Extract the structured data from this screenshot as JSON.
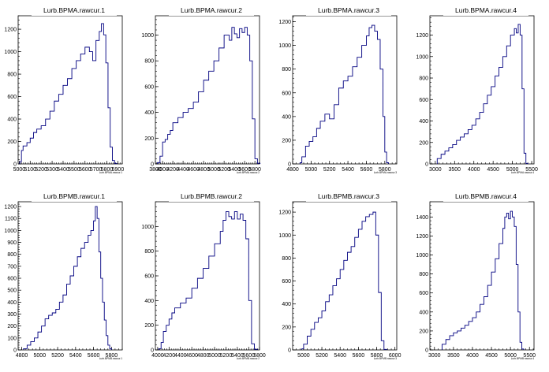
{
  "chart_data": [
    {
      "type": "histogram",
      "title": "Lurb.BPMA.rawcur.1",
      "xlabel": "Lurb.BPMA.rawcur.1",
      "xlim": [
        4990,
        5940
      ],
      "ylim": [
        0,
        1320
      ],
      "xticks": [
        5000,
        5100,
        5200,
        5300,
        5400,
        5500,
        5600,
        5700,
        5800,
        5900
      ],
      "xticklabels": [
        "5000",
        "5100",
        "5200",
        "5300",
        "5400",
        "5500",
        "5600",
        "5700",
        "5800",
        "5900"
      ],
      "yticks": [
        0,
        200,
        400,
        600,
        800,
        1000,
        1200
      ],
      "x": [
        5005,
        5020,
        5035,
        5050,
        5070,
        5100,
        5130,
        5160,
        5200,
        5240,
        5280,
        5320,
        5360,
        5400,
        5440,
        5480,
        5520,
        5560,
        5600,
        5640,
        5670,
        5700,
        5730,
        5750,
        5770,
        5790,
        5810,
        5830,
        5850,
        5870
      ],
      "values": [
        20,
        120,
        160,
        160,
        190,
        230,
        280,
        310,
        340,
        400,
        470,
        560,
        620,
        700,
        760,
        850,
        920,
        980,
        1040,
        1000,
        920,
        1100,
        1180,
        1250,
        1150,
        900,
        500,
        150,
        30,
        5
      ]
    },
    {
      "type": "histogram",
      "title": "Lurb.BPMA.rawcur.2",
      "xlabel": "Lurb.BPMA.rawcur.2",
      "xlim": [
        3860,
        5890
      ],
      "ylim": [
        0,
        1150
      ],
      "xticks": [
        3800,
        4000,
        4200,
        4400,
        4600,
        4800,
        5000,
        5200,
        5400,
        5600,
        5800
      ],
      "xticklabels": [
        "3800",
        "4000",
        "4200",
        "4400",
        "4600",
        "4800",
        "5000",
        "5200",
        "5400",
        "5600",
        "5800"
      ],
      "yticks": [
        0,
        200,
        400,
        600,
        800,
        1000
      ],
      "x": [
        3900,
        3950,
        4000,
        4050,
        4100,
        4150,
        4200,
        4300,
        4400,
        4500,
        4600,
        4700,
        4800,
        4900,
        5000,
        5100,
        5200,
        5300,
        5350,
        5400,
        5450,
        5500,
        5550,
        5600,
        5650,
        5700,
        5750,
        5800,
        5850
      ],
      "values": [
        10,
        60,
        170,
        190,
        230,
        260,
        320,
        360,
        400,
        430,
        480,
        560,
        650,
        720,
        800,
        900,
        1000,
        960,
        1060,
        1010,
        980,
        1050,
        1020,
        1060,
        1000,
        800,
        350,
        40,
        5
      ]
    },
    {
      "type": "histogram",
      "title": "Lurb.BPMA.rawcur.3",
      "xlabel": "Lurb.BPMA.rawcur.3",
      "xlim": [
        4800,
        5930
      ],
      "ylim": [
        0,
        1250
      ],
      "xticks": [
        4800,
        5000,
        5200,
        5400,
        5600,
        5800
      ],
      "xticklabels": [
        "4800",
        "5000",
        "5200",
        "5400",
        "5600",
        "5800"
      ],
      "yticks": [
        0,
        200,
        400,
        600,
        800,
        1000,
        1200
      ],
      "x": [
        4880,
        4900,
        4940,
        4980,
        5020,
        5060,
        5100,
        5150,
        5200,
        5250,
        5300,
        5350,
        5400,
        5450,
        5500,
        5550,
        5600,
        5630,
        5660,
        5690,
        5720,
        5750,
        5780,
        5800,
        5820
      ],
      "values": [
        10,
        60,
        150,
        190,
        230,
        300,
        360,
        420,
        380,
        500,
        640,
        700,
        740,
        820,
        900,
        1000,
        1080,
        1150,
        1170,
        1120,
        1050,
        800,
        400,
        100,
        10
      ]
    },
    {
      "type": "histogram",
      "title": "Lurb.BPMA.rawcur.4",
      "xlabel": "Lurb.BPMA.rawcur.4",
      "xlim": [
        2860,
        5560
      ],
      "ylim": [
        0,
        1380
      ],
      "xticks": [
        3000,
        3500,
        4000,
        4500,
        5000,
        5500
      ],
      "xticklabels": [
        "3000",
        "3500",
        "4000",
        "4500",
        "5000",
        "5500"
      ],
      "yticks": [
        0,
        200,
        400,
        600,
        800,
        1000,
        1200
      ],
      "x": [
        3050,
        3150,
        3250,
        3350,
        3450,
        3550,
        3650,
        3750,
        3850,
        3950,
        4050,
        4150,
        4250,
        4350,
        4450,
        4550,
        4650,
        4750,
        4850,
        4950,
        5050,
        5100,
        5150,
        5200,
        5250,
        5300,
        5350
      ],
      "values": [
        50,
        90,
        120,
        150,
        180,
        220,
        250,
        280,
        320,
        360,
        420,
        480,
        560,
        640,
        720,
        820,
        900,
        1000,
        1100,
        1200,
        1260,
        1220,
        1300,
        1200,
        700,
        100,
        5
      ]
    },
    {
      "type": "histogram",
      "title": "Lurb.BPMB.rawcur.1",
      "xlabel": "Lurb.BPMB.rawcur.1",
      "xlim": [
        4760,
        5920
      ],
      "ylim": [
        0,
        1240
      ],
      "xticks": [
        4800,
        5000,
        5200,
        5400,
        5600,
        5800
      ],
      "xticklabels": [
        "4800",
        "5000",
        "5200",
        "5400",
        "5600",
        "5800"
      ],
      "yticks": [
        0,
        100,
        200,
        300,
        400,
        500,
        600,
        700,
        800,
        900,
        1000,
        1100,
        1200
      ],
      "x": [
        4820,
        4860,
        4900,
        4940,
        4980,
        5020,
        5060,
        5100,
        5140,
        5180,
        5220,
        5260,
        5300,
        5340,
        5380,
        5420,
        5460,
        5500,
        5540,
        5570,
        5600,
        5620,
        5640,
        5660,
        5680,
        5700,
        5720,
        5740,
        5760,
        5780
      ],
      "values": [
        10,
        40,
        70,
        100,
        150,
        200,
        260,
        290,
        310,
        340,
        400,
        460,
        550,
        620,
        700,
        780,
        850,
        900,
        960,
        1000,
        1080,
        1200,
        1100,
        820,
        600,
        400,
        250,
        120,
        40,
        10
      ]
    },
    {
      "type": "histogram",
      "title": "Lurb.BPMB.rawcur.2",
      "xlabel": "Lurb.BPMB.rawcur.2",
      "xlim": [
        3960,
        5790
      ],
      "ylim": [
        0,
        1200
      ],
      "xticks": [
        4000,
        4200,
        4400,
        4600,
        4800,
        5000,
        5200,
        5400,
        5600,
        5800
      ],
      "xticklabels": [
        "4000",
        "4200",
        "4400",
        "4600",
        "4800",
        "5000",
        "5200",
        "5400",
        "5600",
        "5800"
      ],
      "yticks": [
        0,
        200,
        400,
        600,
        800,
        1000
      ],
      "x": [
        4020,
        4060,
        4100,
        4150,
        4200,
        4250,
        4300,
        4400,
        4500,
        4600,
        4700,
        4800,
        4900,
        5000,
        5100,
        5150,
        5200,
        5250,
        5300,
        5350,
        5400,
        5450,
        5500,
        5550,
        5600,
        5650,
        5700
      ],
      "values": [
        10,
        60,
        150,
        200,
        250,
        300,
        340,
        380,
        420,
        500,
        580,
        660,
        760,
        860,
        960,
        1050,
        1120,
        1080,
        1060,
        1120,
        1060,
        1100,
        1050,
        900,
        400,
        50,
        5
      ]
    },
    {
      "type": "histogram",
      "title": "Lurb.BPMB.rawcur.3",
      "xlabel": "Lurb.BPMB.rawcur.3",
      "xlim": [
        4880,
        6020
      ],
      "ylim": [
        0,
        1290
      ],
      "xticks": [
        5000,
        5200,
        5400,
        5600,
        5800,
        6000
      ],
      "xticklabels": [
        "5000",
        "5200",
        "5400",
        "5600",
        "5800",
        "6000"
      ],
      "yticks": [
        0,
        200,
        400,
        600,
        800,
        1000,
        1200
      ],
      "x": [
        4980,
        5000,
        5040,
        5080,
        5120,
        5160,
        5200,
        5240,
        5280,
        5320,
        5360,
        5400,
        5440,
        5480,
        5520,
        5560,
        5600,
        5640,
        5680,
        5720,
        5760,
        5790,
        5820,
        5850,
        5880
      ],
      "values": [
        10,
        50,
        120,
        180,
        240,
        280,
        340,
        420,
        480,
        560,
        620,
        700,
        780,
        850,
        900,
        980,
        1050,
        1120,
        1160,
        1180,
        1200,
        1000,
        500,
        80,
        5
      ]
    },
    {
      "type": "histogram",
      "title": "Lurb.BPMB.rawcur.4",
      "xlabel": "Lurb.BPMB.rawcur.4",
      "xlim": [
        2880,
        5620
      ],
      "ylim": [
        0,
        1560
      ],
      "xticks": [
        3000,
        3500,
        4000,
        4500,
        5000,
        5500
      ],
      "xticklabels": [
        "3000",
        "3500",
        "4000",
        "4500",
        "5000",
        "5500"
      ],
      "yticks": [
        0,
        200,
        400,
        600,
        800,
        1000,
        1200,
        1400
      ],
      "x": [
        3200,
        3300,
        3400,
        3500,
        3600,
        3700,
        3800,
        3900,
        4000,
        4100,
        4200,
        4300,
        4400,
        4500,
        4600,
        4700,
        4800,
        4850,
        4900,
        4950,
        5000,
        5050,
        5100,
        5150,
        5200,
        5250,
        5300
      ],
      "values": [
        60,
        110,
        150,
        180,
        200,
        230,
        260,
        300,
        340,
        400,
        480,
        560,
        680,
        820,
        960,
        1120,
        1280,
        1400,
        1440,
        1380,
        1460,
        1400,
        1300,
        900,
        400,
        80,
        10
      ]
    }
  ],
  "colors": {
    "line": "#000080",
    "axis": "#000000",
    "background": "#ffffff"
  }
}
